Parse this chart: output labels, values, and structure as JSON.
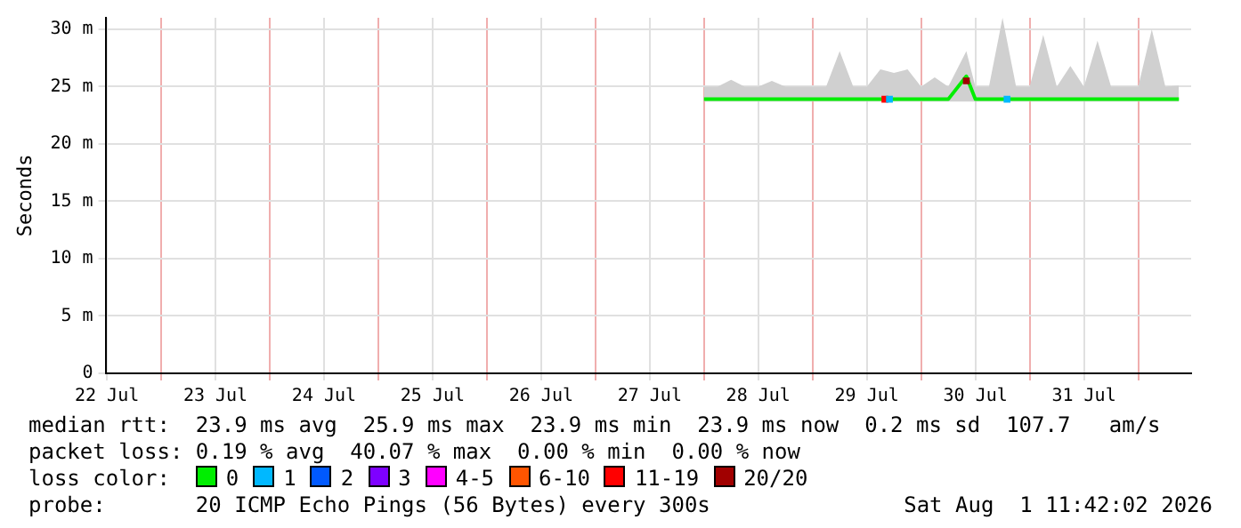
{
  "chart_data": {
    "type": "line",
    "ylabel": "Seconds",
    "legend_title": "loss color:",
    "legend": "bottom",
    "grid": true,
    "marker": "none",
    "line_style": "solid",
    "xlim": [
      "2026-07-22T11:42",
      "2026-08-01T11:42"
    ],
    "xticks": [
      {
        "value": "2026-07-22T12:00",
        "label": "22 Jul"
      },
      {
        "value": "2026-07-23T00:00",
        "label": null
      },
      {
        "value": "2026-07-23T12:00",
        "label": "23 Jul"
      },
      {
        "value": "2026-07-24T00:00",
        "label": null
      },
      {
        "value": "2026-07-24T12:00",
        "label": "24 Jul"
      },
      {
        "value": "2026-07-25T00:00",
        "label": null
      },
      {
        "value": "2026-07-25T12:00",
        "label": "25 Jul"
      },
      {
        "value": "2026-07-26T00:00",
        "label": null
      },
      {
        "value": "2026-07-26T12:00",
        "label": "26 Jul"
      },
      {
        "value": "2026-07-27T00:00",
        "label": null
      },
      {
        "value": "2026-07-27T12:00",
        "label": "27 Jul"
      },
      {
        "value": "2026-07-28T00:00",
        "label": null
      },
      {
        "value": "2026-07-28T12:00",
        "label": "28 Jul"
      },
      {
        "value": "2026-07-29T00:00",
        "label": null
      },
      {
        "value": "2026-07-29T12:00",
        "label": "29 Jul"
      },
      {
        "value": "2026-07-30T00:00",
        "label": null
      },
      {
        "value": "2026-07-30T12:00",
        "label": "30 Jul"
      },
      {
        "value": "2026-07-31T00:00",
        "label": null
      },
      {
        "value": "2026-07-31T12:00",
        "label": "31 Jul"
      },
      {
        "value": "2026-08-01T00:00",
        "label": null
      }
    ],
    "ylim": [
      0,
      31
    ],
    "yticks": [
      0,
      {
        "value": 5,
        "label": "5 m"
      },
      {
        "value": 10,
        "label": "10 m"
      },
      {
        "value": 15,
        "label": "15 m"
      },
      {
        "value": 20,
        "label": "20 m"
      },
      {
        "value": 25,
        "label": "25 m"
      },
      {
        "value": 30,
        "label": "30 m"
      }
    ],
    "series": [
      {
        "name": "0",
        "color": "#00ee00",
        "x": [
          "2026-07-28T00:00",
          "2026-07-28T03:00",
          "2026-07-28T06:00",
          "2026-07-28T09:00",
          "2026-07-28T12:00",
          "2026-07-28T15:00",
          "2026-07-28T18:00",
          "2026-07-28T21:00",
          "2026-07-29T00:00",
          "2026-07-29T03:00",
          "2026-07-29T06:00",
          "2026-07-29T09:00",
          "2026-07-29T12:00",
          "2026-07-29T15:00",
          "2026-07-29T18:00",
          "2026-07-29T21:00",
          "2026-07-30T00:00",
          "2026-07-30T03:00",
          "2026-07-30T06:00",
          "2026-07-30T10:00",
          "2026-07-30T12:00",
          "2026-07-30T15:00",
          "2026-07-30T18:00",
          "2026-07-30T21:00",
          "2026-07-31T00:00",
          "2026-07-31T03:00",
          "2026-07-31T06:00",
          "2026-07-31T09:00",
          "2026-07-31T12:00",
          "2026-07-31T15:00",
          "2026-07-31T18:00",
          "2026-07-31T21:00",
          "2026-08-01T00:00",
          "2026-08-01T03:00",
          "2026-08-01T06:00",
          "2026-08-01T09:00"
        ],
        "values": [
          23.9,
          23.9,
          23.9,
          23.9,
          23.9,
          23.9,
          23.9,
          23.9,
          23.9,
          23.9,
          23.9,
          23.9,
          23.9,
          23.9,
          23.9,
          23.9,
          23.9,
          23.9,
          23.9,
          25.9,
          23.9,
          23.9,
          23.9,
          23.9,
          23.9,
          23.9,
          23.9,
          23.9,
          23.9,
          23.9,
          23.9,
          23.9,
          23.9,
          23.9,
          23.9,
          23.9
        ],
        "lower": [
          23.7,
          23.7,
          23.7,
          23.7,
          23.7,
          23.7,
          23.7,
          23.7,
          23.7,
          23.7,
          23.7,
          23.7,
          23.7,
          23.7,
          23.7,
          23.7,
          23.7,
          23.7,
          23.7,
          23.7,
          23.7,
          23.7,
          23.7,
          23.7,
          23.7,
          23.7,
          23.7,
          23.7,
          23.7,
          23.7,
          23.7,
          23.7,
          23.7,
          23.7,
          23.7,
          23.7
        ],
        "upper": [
          25,
          25,
          25.6,
          25,
          25,
          25.5,
          25,
          25,
          25,
          25,
          28.1,
          25,
          25,
          26.5,
          26.2,
          26.5,
          25,
          25.8,
          25,
          28.1,
          25,
          25,
          31,
          25,
          25,
          29.5,
          25,
          26.8,
          25,
          29,
          25,
          25,
          25,
          30,
          25,
          25.1
        ]
      },
      {
        "name": "1",
        "color": "#00b8ff",
        "type": "scatter",
        "marker": "square",
        "x": [
          "2026-07-29T17:00",
          "2026-07-30T19:00"
        ],
        "values": [
          23.9,
          23.9
        ]
      },
      {
        "name": "2",
        "color": "#0059ff"
      },
      {
        "name": "3",
        "color": "#7e00ff"
      },
      {
        "name": "4-5",
        "color": "#ff00ff"
      },
      {
        "name": "6-10",
        "color": "#ff5500"
      },
      {
        "name": "11-19",
        "color": "#ff0000",
        "type": "scatter",
        "marker": "square",
        "x": [
          "2026-07-29T16:00"
        ],
        "values": [
          23.9
        ]
      },
      {
        "name": "20/20",
        "color": "#a10000",
        "type": "scatter",
        "marker": "square",
        "x": [
          "2026-07-30T10:00"
        ],
        "values": [
          25.5
        ]
      }
    ],
    "annotations": [
      "median rtt:  23.9 ms avg  25.9 ms max  23.9 ms min  23.9 ms now  0.2 ms sd  107.7   am/s",
      "packet loss: 0.19 % avg  40.07 % max  0.00 % min  0.00 % now",
      "probe:       20 ICMP Echo Pings (56 Bytes) every 300s",
      "Sat Aug  1 11:42:02 2026"
    ]
  }
}
